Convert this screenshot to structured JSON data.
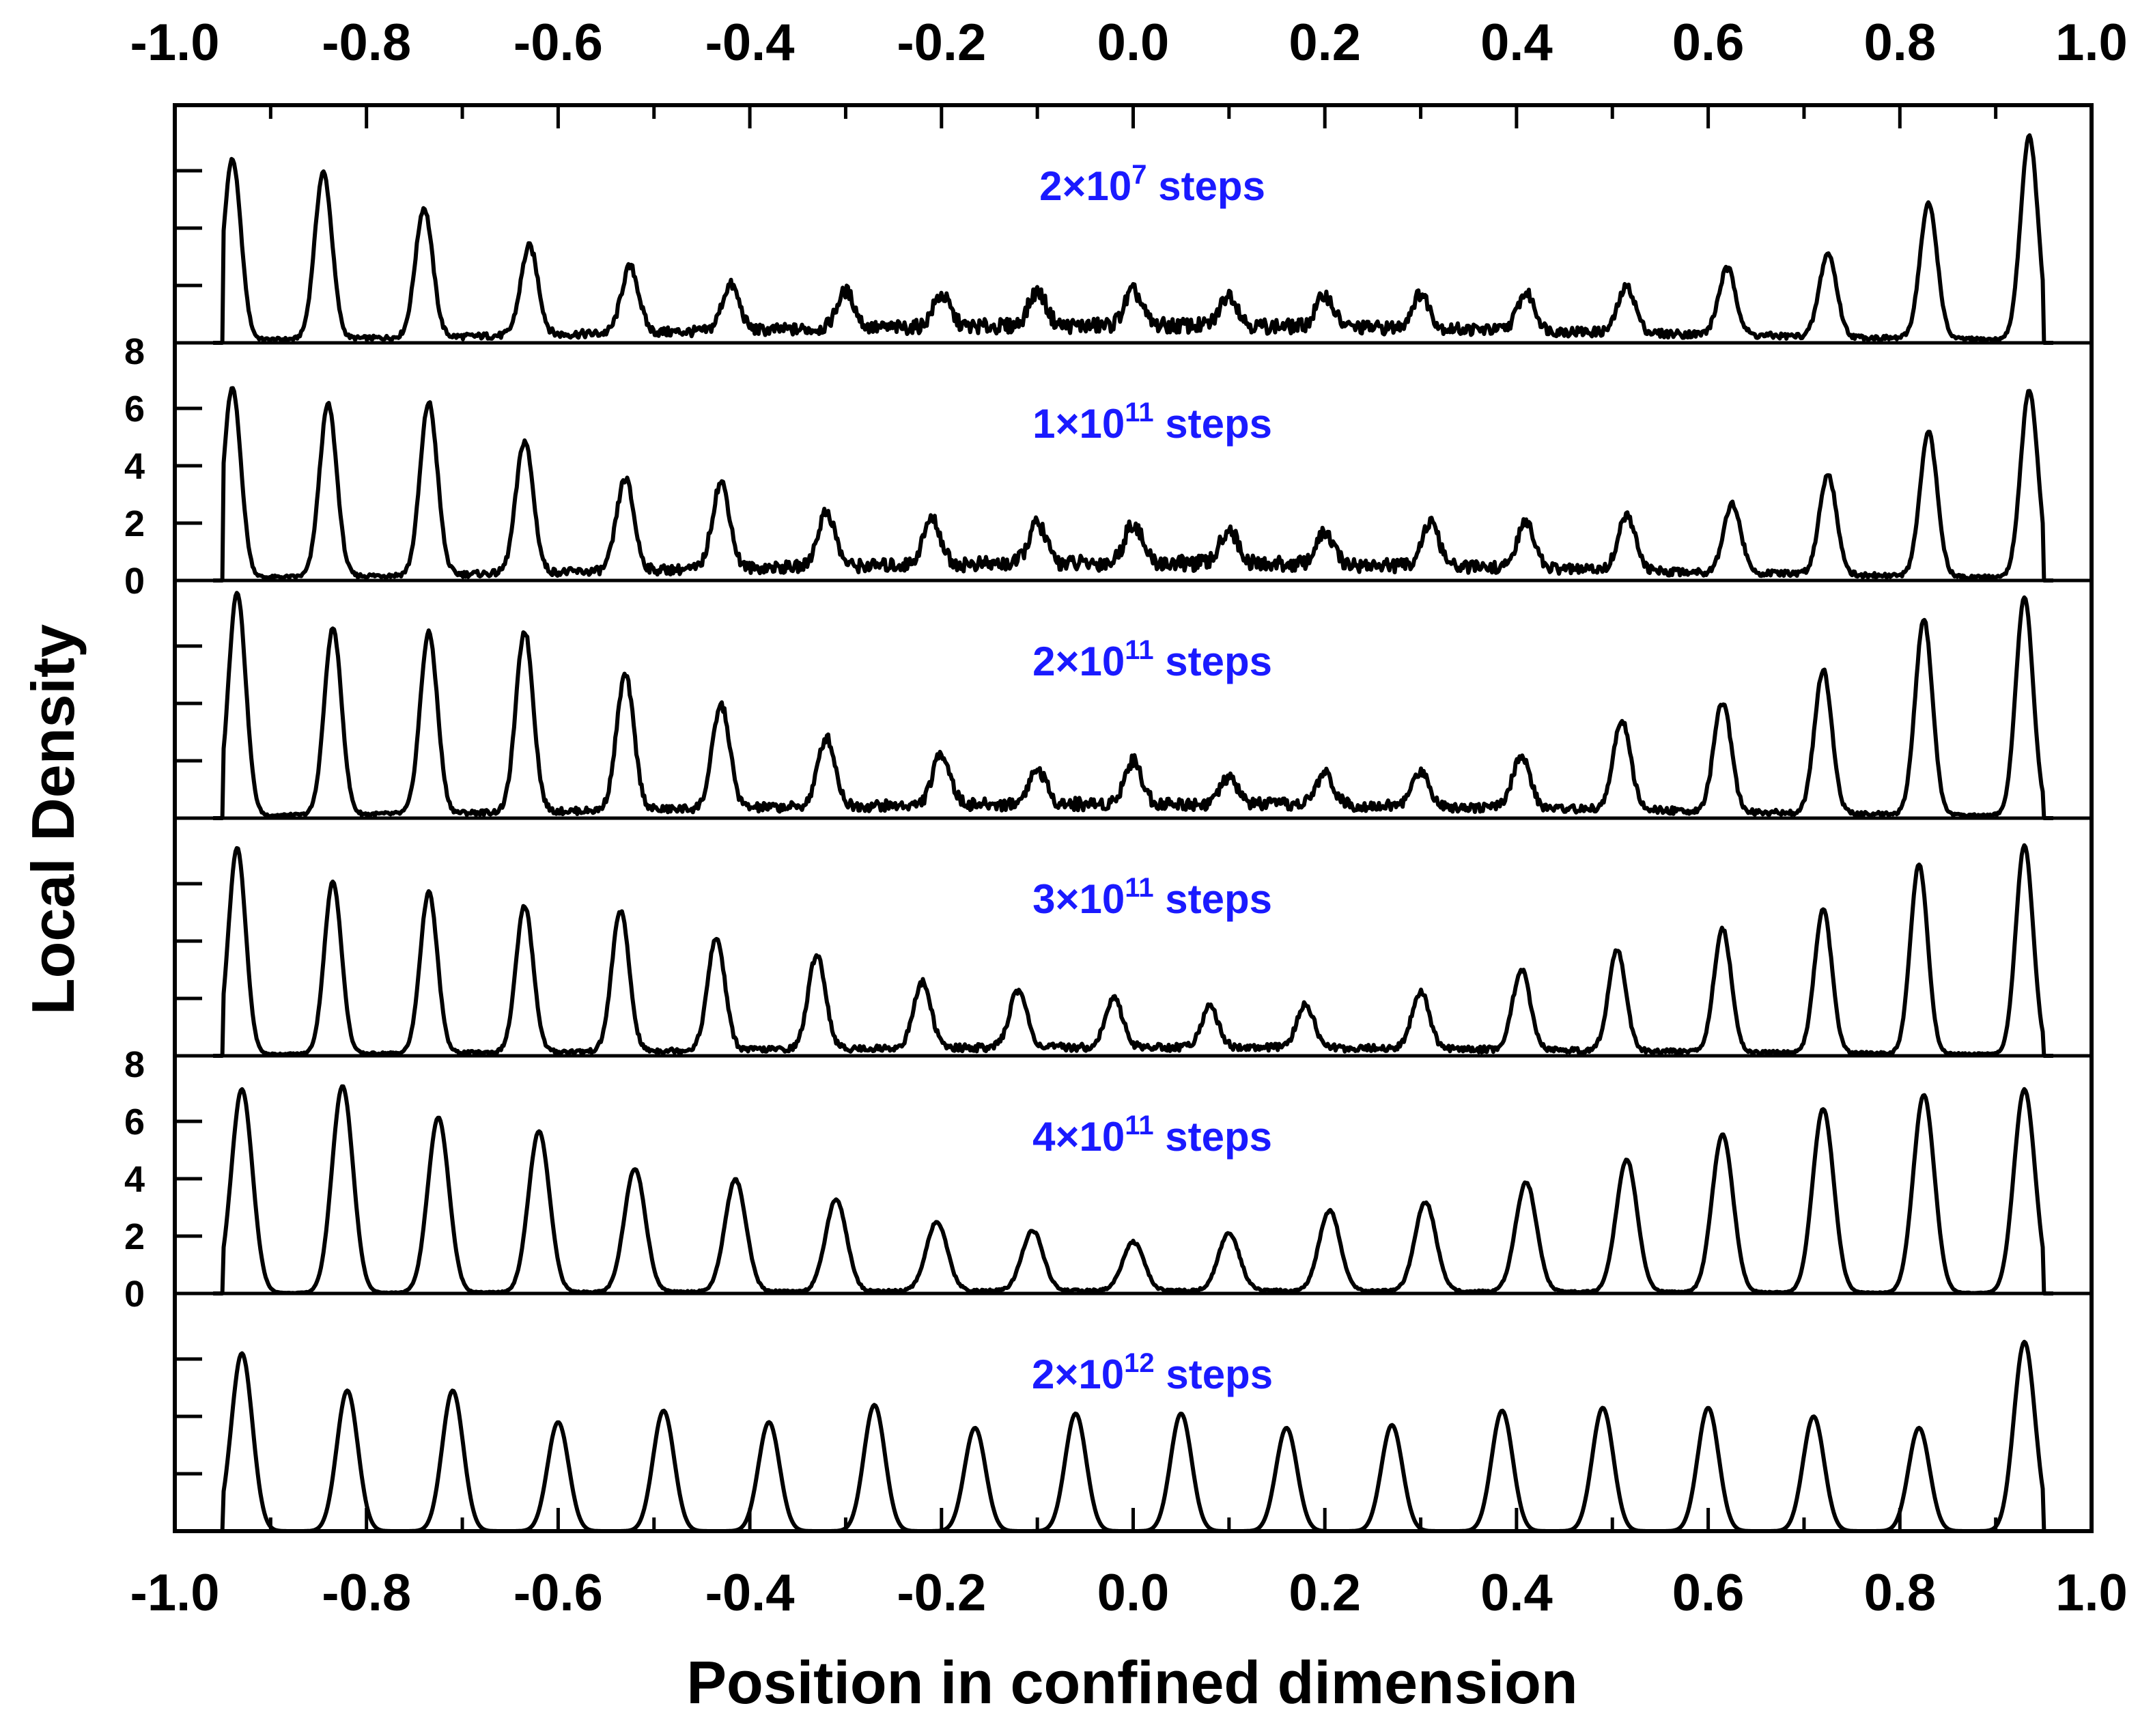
{
  "chart_data": {
    "type": "line",
    "xlabel": "Position in confined dimension",
    "ylabel": "Local Density",
    "xlim": [
      -1.0,
      1.0
    ],
    "ylim": [
      0,
      8
    ],
    "x_ticks": [
      "-1.0",
      "-0.8",
      "-0.6",
      "-0.4",
      "-0.2",
      "0.0",
      "0.2",
      "0.4",
      "0.6",
      "0.8",
      "1.0"
    ],
    "y_ticks": [
      "0",
      "2",
      "4",
      "6",
      "8"
    ],
    "x_axis_top": true,
    "colors": {
      "line": "#000000",
      "panel_label": "#1a1aff"
    },
    "panels": [
      {
        "label_coef": "2",
        "label_exp": "7",
        "label_suffix": " steps",
        "peaks": [
          [
            -0.94,
            6.3
          ],
          [
            -0.845,
            5.8
          ],
          [
            -0.74,
            4.5
          ],
          [
            -0.63,
            3.1
          ],
          [
            -0.525,
            2.3
          ],
          [
            -0.42,
            1.6
          ],
          [
            -0.3,
            1.3
          ],
          [
            -0.2,
            1.1
          ],
          [
            -0.1,
            1.2
          ],
          [
            0.0,
            1.2
          ],
          [
            0.1,
            1.1
          ],
          [
            0.2,
            1.1
          ],
          [
            0.3,
            1.2
          ],
          [
            0.41,
            1.3
          ],
          [
            0.515,
            1.6
          ],
          [
            0.62,
            2.3
          ],
          [
            0.725,
            2.9
          ],
          [
            0.83,
            4.7
          ],
          [
            0.935,
            7.1
          ]
        ],
        "peak_width": 0.009,
        "baseline": 0.6
      },
      {
        "label_coef": "1",
        "label_exp": "11",
        "label_suffix": " steps",
        "peaks": [
          [
            -0.94,
            6.6
          ],
          [
            -0.84,
            6.0
          ],
          [
            -0.735,
            6.0
          ],
          [
            -0.635,
            4.6
          ],
          [
            -0.53,
            3.2
          ],
          [
            -0.43,
            3.0
          ],
          [
            -0.32,
            1.9
          ],
          [
            -0.21,
            1.6
          ],
          [
            -0.1,
            1.4
          ],
          [
            0.0,
            1.4
          ],
          [
            0.1,
            1.2
          ],
          [
            0.2,
            1.1
          ],
          [
            0.31,
            1.5
          ],
          [
            0.41,
            1.6
          ],
          [
            0.515,
            1.9
          ],
          [
            0.625,
            2.4
          ],
          [
            0.725,
            3.5
          ],
          [
            0.83,
            5.0
          ],
          [
            0.935,
            6.5
          ]
        ],
        "peak_width": 0.009,
        "baseline": 0.6
      },
      {
        "label_coef": "2",
        "label_exp": "11",
        "label_suffix": " steps",
        "peaks": [
          [
            -0.935,
            7.8
          ],
          [
            -0.835,
            6.5
          ],
          [
            -0.735,
            6.3
          ],
          [
            -0.635,
            6.3
          ],
          [
            -0.53,
            4.7
          ],
          [
            -0.43,
            3.6
          ],
          [
            -0.32,
            2.4
          ],
          [
            -0.2,
            1.8
          ],
          [
            -0.1,
            1.2
          ],
          [
            0.0,
            1.5
          ],
          [
            0.1,
            0.9
          ],
          [
            0.2,
            1.1
          ],
          [
            0.3,
            1.2
          ],
          [
            0.405,
            1.8
          ],
          [
            0.51,
            3.1
          ],
          [
            0.615,
            3.8
          ],
          [
            0.72,
            5.0
          ],
          [
            0.825,
            6.8
          ],
          [
            0.93,
            7.6
          ]
        ],
        "peak_width": 0.009,
        "baseline": 0.5
      },
      {
        "label_coef": "3",
        "label_exp": "11",
        "label_suffix": " steps",
        "peaks": [
          [
            -0.935,
            7.2
          ],
          [
            -0.835,
            6.0
          ],
          [
            -0.735,
            5.6
          ],
          [
            -0.635,
            5.1
          ],
          [
            -0.535,
            4.9
          ],
          [
            -0.435,
            3.9
          ],
          [
            -0.33,
            3.3
          ],
          [
            -0.22,
            2.3
          ],
          [
            -0.12,
            2.0
          ],
          [
            -0.02,
            1.7
          ],
          [
            0.08,
            1.4
          ],
          [
            0.18,
            1.5
          ],
          [
            0.3,
            2.0
          ],
          [
            0.405,
            2.8
          ],
          [
            0.505,
            3.5
          ],
          [
            0.615,
            4.3
          ],
          [
            0.72,
            5.0
          ],
          [
            0.82,
            6.6
          ],
          [
            0.93,
            7.3
          ]
        ],
        "peak_width": 0.009,
        "baseline": 0.3
      },
      {
        "label_coef": "4",
        "label_exp": "11",
        "label_suffix": " steps",
        "peaks": [
          [
            -0.93,
            7.1
          ],
          [
            -0.825,
            7.2
          ],
          [
            -0.725,
            6.1
          ],
          [
            -0.62,
            5.6
          ],
          [
            -0.52,
            4.3
          ],
          [
            -0.415,
            3.9
          ],
          [
            -0.31,
            3.2
          ],
          [
            -0.205,
            2.4
          ],
          [
            -0.105,
            2.1
          ],
          [
            0.0,
            1.7
          ],
          [
            0.1,
            2.0
          ],
          [
            0.205,
            2.8
          ],
          [
            0.305,
            3.1
          ],
          [
            0.41,
            3.8
          ],
          [
            0.515,
            4.6
          ],
          [
            0.615,
            5.5
          ],
          [
            0.72,
            6.4
          ],
          [
            0.825,
            6.9
          ],
          [
            0.93,
            7.1
          ]
        ],
        "peak_width": 0.011,
        "baseline": 0.1
      },
      {
        "label_coef": "2",
        "label_exp": "12",
        "label_suffix": " steps",
        "peaks": [
          [
            -0.93,
            6.2
          ],
          [
            -0.82,
            4.9
          ],
          [
            -0.71,
            4.9
          ],
          [
            -0.6,
            3.8
          ],
          [
            -0.49,
            4.2
          ],
          [
            -0.38,
            3.8
          ],
          [
            -0.27,
            4.4
          ],
          [
            -0.165,
            3.6
          ],
          [
            -0.06,
            4.1
          ],
          [
            0.05,
            4.1
          ],
          [
            0.16,
            3.6
          ],
          [
            0.27,
            3.7
          ],
          [
            0.385,
            4.2
          ],
          [
            0.49,
            4.3
          ],
          [
            0.6,
            4.3
          ],
          [
            0.71,
            4.0
          ],
          [
            0.82,
            3.6
          ],
          [
            0.93,
            6.6
          ]
        ],
        "peak_width": 0.011,
        "baseline": 0.0
      }
    ]
  }
}
